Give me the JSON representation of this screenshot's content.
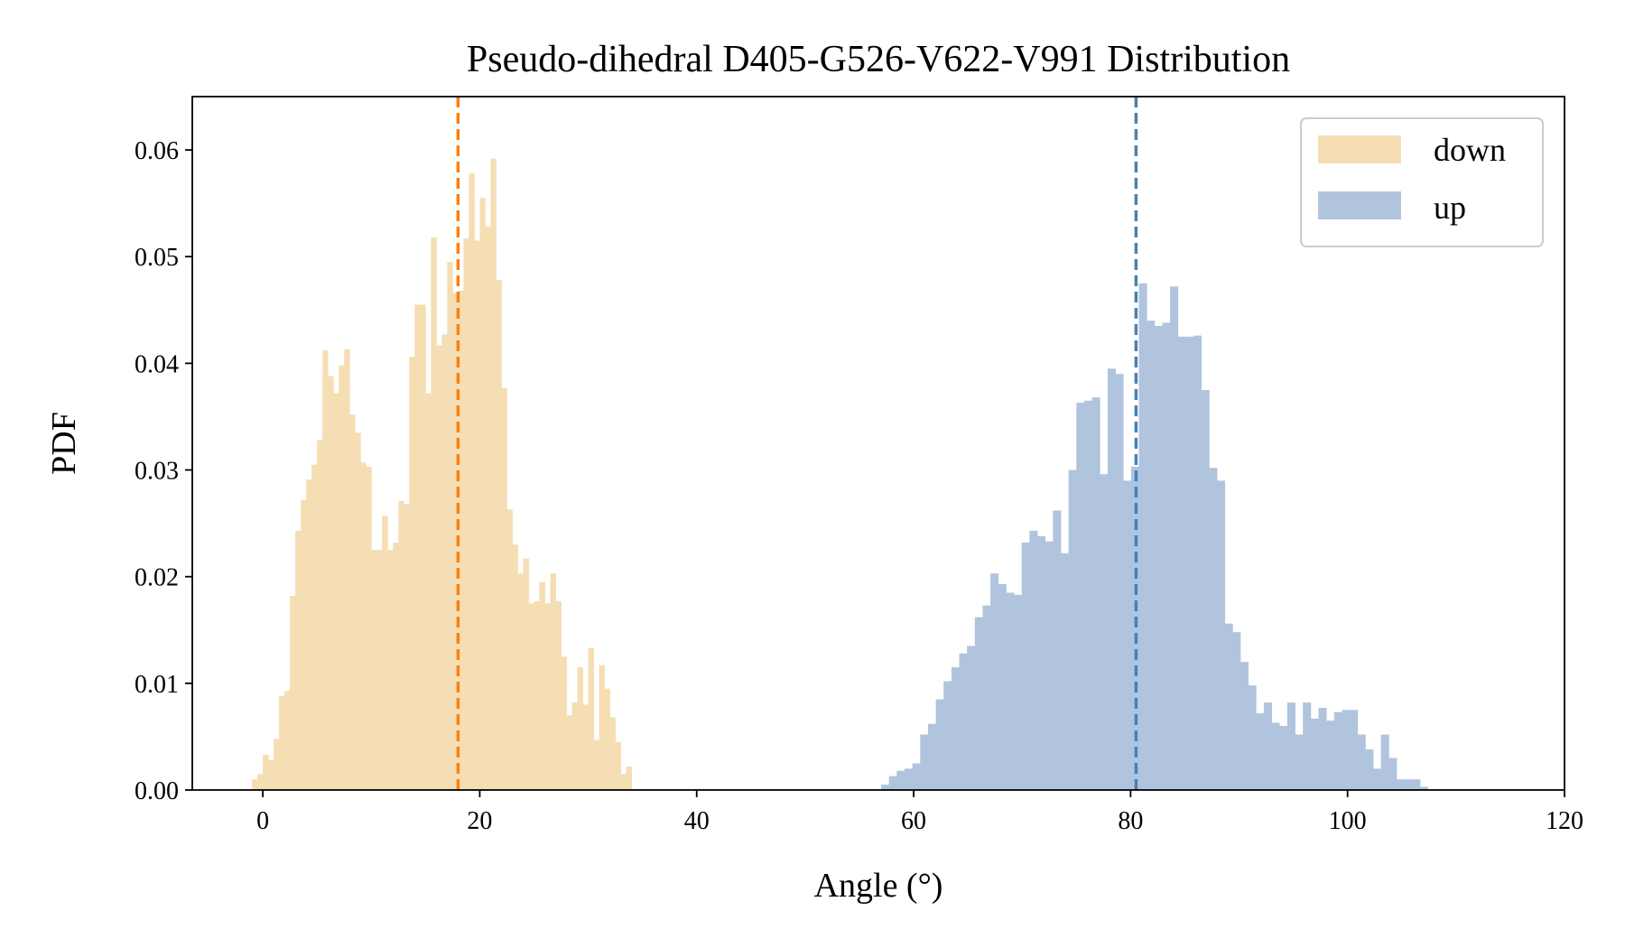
{
  "chart_data": {
    "type": "histogram",
    "title": "Pseudo-dihedral D405-G526-V622-V991 Distribution",
    "xlabel": "Angle (°)",
    "ylabel": "PDF",
    "xlim": [
      -6.5,
      120
    ],
    "ylim": [
      0,
      0.065
    ],
    "xticks": [
      0,
      20,
      40,
      60,
      80,
      100,
      120
    ],
    "xtick_labels": [
      "0",
      "20",
      "40",
      "60",
      "80",
      "100",
      "120"
    ],
    "yticks": [
      0,
      0.01,
      0.02,
      0.03,
      0.04,
      0.05,
      0.06
    ],
    "ytick_labels": [
      "0.00",
      "0.01",
      "0.02",
      "0.03",
      "0.04",
      "0.05",
      "0.06"
    ],
    "grid": false,
    "legend_position": "top-right",
    "series": [
      {
        "name": "down",
        "color": "#f5deb3",
        "bin_start": -1.0,
        "bin_width": 0.5,
        "values": [
          0.001,
          0.0015,
          0.0033,
          0.0028,
          0.0048,
          0.0088,
          0.0093,
          0.0182,
          0.0243,
          0.0272,
          0.0291,
          0.0305,
          0.0328,
          0.0412,
          0.0388,
          0.0372,
          0.0398,
          0.0413,
          0.0352,
          0.0335,
          0.0307,
          0.0303,
          0.0225,
          0.0225,
          0.0257,
          0.0225,
          0.0232,
          0.0271,
          0.0268,
          0.0406,
          0.0455,
          0.0455,
          0.0372,
          0.0518,
          0.0417,
          0.0427,
          0.0495,
          0.0466,
          0.0468,
          0.0517,
          0.0578,
          0.0515,
          0.0555,
          0.0528,
          0.0592,
          0.0478,
          0.0377,
          0.0263,
          0.023,
          0.0203,
          0.0217,
          0.0175,
          0.0177,
          0.0195,
          0.0175,
          0.0203,
          0.0177,
          0.0125,
          0.007,
          0.0082,
          0.0115,
          0.008,
          0.0133,
          0.0047,
          0.0117,
          0.0095,
          0.0068,
          0.0045,
          0.0015,
          0.0022
        ],
        "mean_line": 18.0,
        "mean_line_color": "#ff7f0e"
      },
      {
        "name": "up",
        "color": "#b0c4de",
        "bin_start": 57.0,
        "bin_width": 0.72,
        "values": [
          0.0005,
          0.0013,
          0.0018,
          0.002,
          0.0025,
          0.0052,
          0.0062,
          0.0085,
          0.0102,
          0.0115,
          0.0128,
          0.0135,
          0.0162,
          0.0173,
          0.0203,
          0.0193,
          0.0185,
          0.0183,
          0.0232,
          0.0243,
          0.0238,
          0.0233,
          0.0262,
          0.0222,
          0.03,
          0.0363,
          0.0365,
          0.0368,
          0.0296,
          0.0395,
          0.039,
          0.029,
          0.0303,
          0.0475,
          0.044,
          0.0435,
          0.0438,
          0.0472,
          0.0425,
          0.0425,
          0.0426,
          0.0375,
          0.0302,
          0.029,
          0.0156,
          0.0148,
          0.012,
          0.0098,
          0.0072,
          0.0082,
          0.0063,
          0.006,
          0.0082,
          0.0052,
          0.0082,
          0.0067,
          0.0077,
          0.0065,
          0.0073,
          0.0075,
          0.0075,
          0.0052,
          0.0038,
          0.002,
          0.0052,
          0.003,
          0.001,
          0.001,
          0.001,
          0.0003
        ],
        "mean_line": 80.5,
        "mean_line_color": "#4682b4"
      }
    ]
  }
}
